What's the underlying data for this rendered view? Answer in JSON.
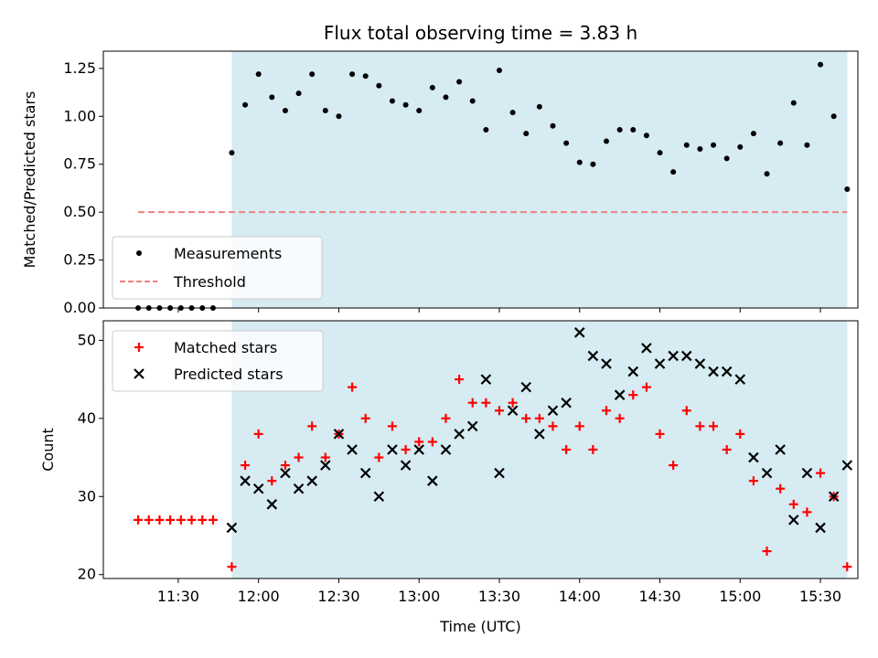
{
  "chart_data": [
    {
      "type": "scatter",
      "title": "Flux total observing time = 3.83 h",
      "ylabel": "Matched/Predicted stars",
      "ylim": [
        0,
        1.34
      ],
      "yticks": [
        0.0,
        0.25,
        0.5,
        0.75,
        1.0,
        1.25
      ],
      "ytick_labels": [
        "0.00",
        "0.25",
        "0.50",
        "0.75",
        "1.00",
        "1.25"
      ],
      "x_range": [
        "11:02",
        "15:44"
      ],
      "xticks": [
        "11:30",
        "12:00",
        "12:30",
        "13:00",
        "13:30",
        "14:00",
        "14:30",
        "15:00",
        "15:30"
      ],
      "observing_span": [
        "11:50",
        "15:40"
      ],
      "series": [
        {
          "name": "Measurements",
          "color": "#000000",
          "marker": "dot",
          "x": [
            "11:15",
            "11:19",
            "11:23",
            "11:27",
            "11:31",
            "11:35",
            "11:39",
            "11:43",
            "11:50",
            "11:55",
            "12:00",
            "12:05",
            "12:10",
            "12:15",
            "12:20",
            "12:25",
            "12:30",
            "12:35",
            "12:40",
            "12:45",
            "12:50",
            "12:55",
            "13:00",
            "13:05",
            "13:10",
            "13:15",
            "13:20",
            "13:25",
            "13:30",
            "13:35",
            "13:40",
            "13:45",
            "13:50",
            "13:55",
            "14:00",
            "14:05",
            "14:10",
            "14:15",
            "14:20",
            "14:25",
            "14:30",
            "14:35",
            "14:40",
            "14:45",
            "14:50",
            "14:55",
            "15:00",
            "15:05",
            "15:10",
            "15:15",
            "15:20",
            "15:25",
            "15:30",
            "15:35",
            "15:40"
          ],
          "y": [
            0,
            0,
            0,
            0,
            0,
            0,
            0,
            0,
            0.81,
            1.06,
            1.22,
            1.1,
            1.03,
            1.12,
            1.22,
            1.03,
            1.0,
            1.22,
            1.21,
            1.16,
            1.08,
            1.06,
            1.03,
            1.15,
            1.1,
            1.18,
            1.08,
            0.93,
            1.24,
            1.02,
            0.91,
            1.05,
            0.95,
            0.86,
            0.76,
            0.75,
            0.87,
            0.93,
            0.93,
            0.9,
            0.81,
            0.71,
            0.85,
            0.83,
            0.85,
            0.78,
            0.84,
            0.91,
            0.7,
            0.86,
            1.07,
            0.85,
            1.27,
            1.0,
            0.62
          ]
        },
        {
          "name": "Threshold",
          "color": "#f08080",
          "style": "dashed",
          "x": [
            "11:15",
            "15:40"
          ],
          "y": [
            0.5,
            0.5
          ]
        }
      ],
      "legend": "lower left"
    },
    {
      "type": "scatter",
      "xlabel": "Time (UTC)",
      "ylabel": "Count",
      "ylim": [
        19.5,
        52.5
      ],
      "yticks": [
        20,
        30,
        40,
        50
      ],
      "ytick_labels": [
        "20",
        "30",
        "40",
        "50"
      ],
      "x_range": [
        "11:02",
        "15:44"
      ],
      "xticks": [
        "11:30",
        "12:00",
        "12:30",
        "13:00",
        "13:30",
        "14:00",
        "14:30",
        "15:00",
        "15:30"
      ],
      "observing_span": [
        "11:50",
        "15:40"
      ],
      "series": [
        {
          "name": "Matched stars",
          "color": "#ff0000",
          "marker": "plus",
          "x": [
            "11:15",
            "11:19",
            "11:23",
            "11:27",
            "11:31",
            "11:35",
            "11:39",
            "11:43",
            "11:50",
            "11:55",
            "12:00",
            "12:05",
            "12:10",
            "12:15",
            "12:20",
            "12:25",
            "12:30",
            "12:35",
            "12:40",
            "12:45",
            "12:50",
            "12:55",
            "13:00",
            "13:05",
            "13:10",
            "13:15",
            "13:20",
            "13:25",
            "13:30",
            "13:35",
            "13:40",
            "13:45",
            "13:50",
            "13:55",
            "14:00",
            "14:05",
            "14:10",
            "14:15",
            "14:20",
            "14:25",
            "14:30",
            "14:35",
            "14:40",
            "14:45",
            "14:50",
            "14:55",
            "15:00",
            "15:05",
            "15:10",
            "15:15",
            "15:20",
            "15:25",
            "15:30",
            "15:35",
            "15:40"
          ],
          "y": [
            27,
            27,
            27,
            27,
            27,
            27,
            27,
            27,
            21,
            34,
            38,
            32,
            34,
            35,
            39,
            35,
            38,
            44,
            40,
            35,
            39,
            36,
            37,
            37,
            40,
            45,
            42,
            42,
            41,
            42,
            40,
            40,
            39,
            36,
            39,
            36,
            41,
            40,
            43,
            44,
            38,
            34,
            41,
            39,
            39,
            36,
            38,
            32,
            23,
            31,
            29,
            28,
            33,
            30,
            21
          ]
        },
        {
          "name": "Predicted stars",
          "color": "#000000",
          "marker": "x",
          "x": [
            "11:50",
            "11:55",
            "12:00",
            "12:05",
            "12:10",
            "12:15",
            "12:20",
            "12:25",
            "12:30",
            "12:35",
            "12:40",
            "12:45",
            "12:50",
            "12:55",
            "13:00",
            "13:05",
            "13:10",
            "13:15",
            "13:20",
            "13:25",
            "13:30",
            "13:35",
            "13:40",
            "13:45",
            "13:50",
            "13:55",
            "14:00",
            "14:05",
            "14:10",
            "14:15",
            "14:20",
            "14:25",
            "14:30",
            "14:35",
            "14:40",
            "14:45",
            "14:50",
            "14:55",
            "15:00",
            "15:05",
            "15:10",
            "15:15",
            "15:20",
            "15:25",
            "15:30",
            "15:35",
            "15:40"
          ],
          "y": [
            26,
            32,
            31,
            29,
            33,
            31,
            32,
            34,
            38,
            36,
            33,
            30,
            36,
            34,
            36,
            32,
            36,
            38,
            39,
            45,
            33,
            41,
            44,
            38,
            41,
            42,
            51,
            48,
            47,
            43,
            46,
            49,
            47,
            48,
            48,
            47,
            46,
            46,
            45,
            35,
            33,
            36,
            27,
            33,
            26,
            30,
            34
          ]
        }
      ],
      "legend": "upper left"
    }
  ]
}
